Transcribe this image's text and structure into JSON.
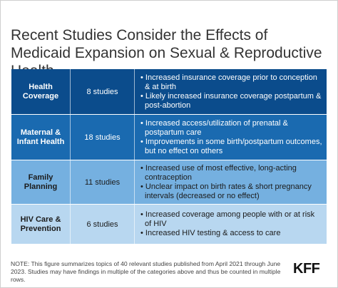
{
  "title": "Recent Studies Consider the Effects of Medicaid Expansion on Sexual & Reproductive Health.",
  "rows": [
    {
      "topic": "Health Coverage",
      "count": "8 studies",
      "findings": [
        "• Increased insurance coverage prior to conception & at birth",
        "• Likely increased insurance coverage postpartum & post-abortion"
      ]
    },
    {
      "topic": "Maternal & Infant Health",
      "count": "18 studies",
      "findings": [
        "• Increased access/utilization of prenatal & postpartum care",
        "• Improvements in some birth/postpartum outcomes, but no effect on others"
      ]
    },
    {
      "topic": "Family Planning",
      "count": "11 studies",
      "findings": [
        "• Increased use of most effective, long-acting contraception",
        "• Unclear impact on birth rates & short pregnancy intervals (decreased or no effect)"
      ]
    },
    {
      "topic": "HIV Care & Prevention",
      "count": "6 studies",
      "findings": [
        "• Increased coverage among people with or at risk of HIV",
        "• Increased HIV testing & access to care"
      ]
    }
  ],
  "note": "NOTE: This figure summarizes topics of 40 relevant studies published from April 2021 through June 2023. Studies may have findings in multiple of the categories above and thus be counted in multiple rows.",
  "logo_text": "KFF",
  "colors": {
    "row1": "#0b4c8c",
    "row2": "#1a6ab0",
    "row3": "#75b0e0",
    "row4": "#b8d7f0"
  }
}
